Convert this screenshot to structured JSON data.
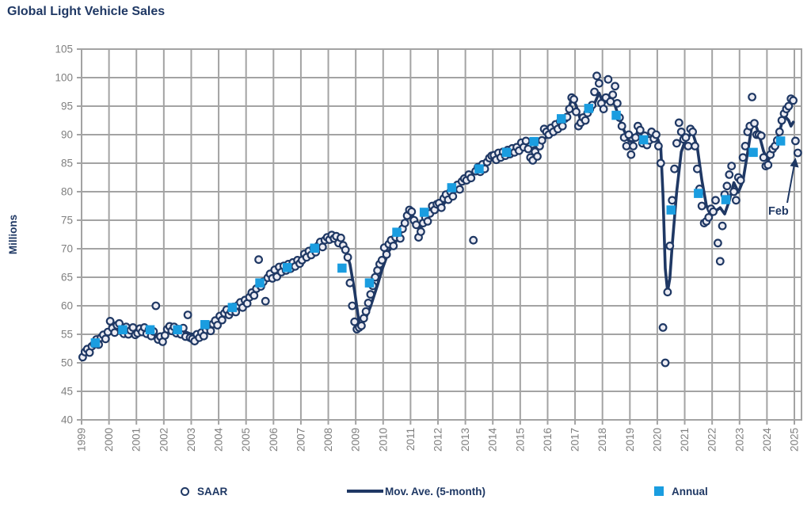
{
  "title": "Global Light Vehicle Sales",
  "colors": {
    "navy": "#1F3864",
    "annual_blue": "#1A9DE0",
    "grid": "#A3A3A3",
    "axis_label": "#7F7F7F",
    "scatter_fill": "#ECECF3",
    "background": "#FFFFFF"
  },
  "legend": {
    "items": [
      {
        "label": "SAAR",
        "marker": "circle"
      },
      {
        "label": "Mov. Ave. (5-month)",
        "marker": "line"
      },
      {
        "label": "Annual",
        "marker": "square"
      }
    ]
  },
  "chart_data": {
    "type": "combo",
    "title": "Global Light Vehicle Sales",
    "xlabel": "",
    "ylabel": "Millions",
    "ylim": [
      40,
      105
    ],
    "ytick_step": 5,
    "grid": "on",
    "legend_position": "bottom",
    "x_years": [
      1999,
      2000,
      2001,
      2002,
      2003,
      2004,
      2005,
      2006,
      2007,
      2008,
      2009,
      2010,
      2011,
      2012,
      2013,
      2014,
      2015,
      2016,
      2017,
      2018,
      2019,
      2020,
      2021,
      2022,
      2023,
      2024,
      2025
    ],
    "annotation": {
      "text": "Feb",
      "series": "SAAR",
      "month": "2025-02",
      "value": 86.8
    },
    "series": [
      {
        "name": "SAAR",
        "type": "scatter",
        "marker": "open-circle",
        "frequency": "monthly",
        "monthly_by_year": {
          "1999": [
            51.0,
            51.9,
            52.4,
            51.8,
            52.9,
            53.3,
            54.1,
            53.2,
            54.4,
            54.9,
            54.2,
            55.4
          ],
          "2000": [
            57.3,
            56.1,
            55.3,
            56.6,
            56.9,
            55.6,
            55.1,
            56.3,
            55.0,
            55.7,
            56.2,
            54.9
          ],
          "2001": [
            55.2,
            56.0,
            55.4,
            56.2,
            55.1,
            55.8,
            54.7,
            55.5,
            60.0,
            54.1,
            54.6,
            53.7
          ],
          "2002": [
            54.8,
            55.9,
            56.4,
            55.6,
            56.3,
            55.2,
            55.9,
            55.0,
            56.1,
            54.6,
            58.4,
            54.4
          ],
          "2003": [
            54.2,
            53.8,
            55.0,
            54.4,
            55.3,
            54.7,
            55.8,
            56.4,
            55.6,
            56.8,
            57.4,
            56.6
          ],
          "2004": [
            58.2,
            57.5,
            58.7,
            59.3,
            58.4,
            59.0,
            59.8,
            58.9,
            60.1,
            60.6,
            59.7,
            61.0
          ],
          "2005": [
            60.4,
            61.5,
            62.3,
            61.8,
            63.0,
            68.1,
            63.4,
            64.2,
            60.8,
            64.9,
            65.6,
            64.8
          ],
          "2006": [
            66.3,
            65.1,
            66.8,
            65.9,
            67.0,
            66.2,
            67.3,
            66.5,
            67.6,
            66.9,
            68.0,
            67.4
          ],
          "2007": [
            68.0,
            69.1,
            68.5,
            69.6,
            68.9,
            70.1,
            69.4,
            70.5,
            71.2,
            70.3,
            71.5,
            72.0
          ],
          "2008": [
            71.6,
            72.4,
            71.8,
            72.2,
            71.0,
            71.9,
            70.6,
            69.8,
            68.5,
            64.0,
            60.0,
            57.2
          ],
          "2009": [
            55.9,
            56.2,
            56.5,
            57.8,
            59.0,
            60.5,
            62.0,
            63.5,
            65.0,
            66.2,
            67.3,
            68.0
          ],
          "2010": [
            70.2,
            69.0,
            70.8,
            71.5,
            70.5,
            72.0,
            72.8,
            71.8,
            73.5,
            74.5,
            75.8,
            76.8
          ],
          "2011": [
            76.5,
            75.0,
            74.2,
            72.0,
            73.0,
            74.5,
            75.5,
            74.8,
            76.2,
            77.5,
            76.8,
            77.8
          ],
          "2012": [
            78.0,
            77.2,
            78.8,
            79.5,
            78.6,
            80.0,
            79.2,
            80.5,
            81.2,
            80.4,
            81.8,
            82.3
          ],
          "2013": [
            82.0,
            83.0,
            82.4,
            71.5,
            83.6,
            84.3,
            83.5,
            84.8,
            84.0,
            85.2,
            85.9,
            86.3
          ],
          "2014": [
            86.4,
            85.6,
            86.8,
            86.0,
            87.0,
            86.3,
            87.3,
            86.6,
            87.6,
            86.9,
            87.8,
            87.2
          ],
          "2015": [
            88.6,
            87.8,
            88.9,
            87.5,
            86.0,
            85.5,
            87.0,
            86.2,
            88.0,
            89.0,
            91.0,
            90.5
          ],
          "2016": [
            90.0,
            91.2,
            90.5,
            91.8,
            91.0,
            92.3,
            91.5,
            92.8,
            93.1,
            94.5,
            96.5,
            96.2
          ],
          "2017": [
            94.0,
            91.5,
            92.1,
            93.0,
            92.5,
            93.8,
            94.5,
            95.2,
            97.5,
            100.3,
            99.0,
            95.5
          ],
          "2018": [
            94.5,
            96.5,
            99.7,
            95.8,
            97.0,
            98.5,
            95.5,
            93.0,
            91.5,
            89.5,
            88.0,
            90.0
          ],
          "2019": [
            86.5,
            88.0,
            89.5,
            91.5,
            90.8,
            88.5,
            89.8,
            88.2,
            89.0,
            90.5,
            89.3,
            90.0
          ],
          "2020": [
            88.0,
            85.0,
            56.2,
            50.0,
            62.4,
            70.5,
            78.5,
            84.0,
            88.5,
            92.1,
            90.5,
            89.2
          ],
          "2021": [
            89.5,
            88.0,
            91.0,
            90.5,
            88.0,
            84.0,
            80.5,
            77.5,
            74.5,
            74.8,
            75.5,
            77.0
          ],
          "2022": [
            76.5,
            78.5,
            71.0,
            67.8,
            74.0,
            79.5,
            81.0,
            83.0,
            84.5,
            80.0,
            78.5,
            82.5
          ],
          "2023": [
            82.0,
            86.0,
            88.0,
            90.5,
            91.5,
            96.6,
            92.0,
            90.0,
            90.0,
            89.8,
            86.0,
            84.5
          ],
          "2024": [
            84.7,
            86.5,
            87.5,
            88.0,
            89.0,
            90.5,
            92.5,
            93.7,
            94.5,
            95.0,
            96.3,
            96.0
          ],
          "2025": [
            88.9,
            86.8
          ]
        }
      },
      {
        "name": "Mov. Ave. (5-month)",
        "type": "line",
        "anchors_month_index_from_jan1999": [
          [
            2,
            51.8
          ],
          [
            5,
            53.1
          ],
          [
            8,
            54.4
          ],
          [
            11,
            55.4
          ],
          [
            14,
            56.1
          ],
          [
            17,
            55.8
          ],
          [
            20,
            55.6
          ],
          [
            23,
            55.4
          ],
          [
            26,
            55.7
          ],
          [
            30,
            55.2
          ],
          [
            34,
            54.6
          ],
          [
            38,
            55.5
          ],
          [
            41,
            56.0
          ],
          [
            44,
            55.6
          ],
          [
            47,
            55.1
          ],
          [
            50,
            54.9
          ],
          [
            53,
            55.4
          ],
          [
            56,
            56.5
          ],
          [
            59,
            57.5
          ],
          [
            63,
            58.6
          ],
          [
            67,
            59.8
          ],
          [
            71,
            60.7
          ],
          [
            75,
            62.1
          ],
          [
            79,
            64.1
          ],
          [
            83,
            65.4
          ],
          [
            87,
            66.1
          ],
          [
            91,
            66.9
          ],
          [
            95,
            67.9
          ],
          [
            99,
            68.7
          ],
          [
            103,
            69.9
          ],
          [
            106,
            71.2
          ],
          [
            109,
            72.1
          ],
          [
            112,
            71.4
          ],
          [
            115,
            69.8
          ],
          [
            117,
            67.3
          ],
          [
            119,
            62.6
          ],
          [
            121,
            56.9
          ],
          [
            122,
            56.6
          ],
          [
            124,
            57.9
          ],
          [
            126,
            59.9
          ],
          [
            129,
            63.6
          ],
          [
            131,
            66.3
          ],
          [
            134,
            69.6
          ],
          [
            137,
            71.2
          ],
          [
            140,
            73.5
          ],
          [
            143,
            76.2
          ],
          [
            145,
            75.5
          ],
          [
            147,
            73.5
          ],
          [
            149,
            74.1
          ],
          [
            152,
            75.9
          ],
          [
            155,
            77.1
          ],
          [
            158,
            77.8
          ],
          [
            161,
            79.6
          ],
          [
            164,
            80.7
          ],
          [
            167,
            81.7
          ],
          [
            170,
            82.9
          ],
          [
            173,
            84.1
          ],
          [
            176,
            85.2
          ],
          [
            179,
            85.8
          ],
          [
            183,
            86.4
          ],
          [
            187,
            87.0
          ],
          [
            191,
            87.9
          ],
          [
            194,
            88.0
          ],
          [
            196,
            87.5
          ],
          [
            199,
            87.9
          ],
          [
            202,
            89.2
          ],
          [
            205,
            90.3
          ],
          [
            209,
            91.6
          ],
          [
            212,
            93.1
          ],
          [
            214,
            96.6
          ],
          [
            216,
            95.1
          ],
          [
            218,
            92.4
          ],
          [
            220,
            92.9
          ],
          [
            223,
            94.5
          ],
          [
            226,
            97.3
          ],
          [
            228,
            95.4
          ],
          [
            231,
            96.8
          ],
          [
            233,
            95.1
          ],
          [
            235,
            92.7
          ],
          [
            237,
            90.7
          ],
          [
            239,
            88.9
          ],
          [
            241,
            88.7
          ],
          [
            243,
            90.7
          ],
          [
            245,
            89.7
          ],
          [
            247,
            88.8
          ],
          [
            249,
            89.2
          ],
          [
            251,
            90.0
          ],
          [
            253,
            87.8
          ],
          [
            254,
            79.5
          ],
          [
            255,
            66.5
          ],
          [
            256,
            62.5
          ],
          [
            257,
            64.8
          ],
          [
            258,
            70.5
          ],
          [
            260,
            80.0
          ],
          [
            262,
            87.0
          ],
          [
            264,
            89.3
          ],
          [
            267,
            90.3
          ],
          [
            269,
            87.8
          ],
          [
            271,
            82.0
          ],
          [
            273,
            77.6
          ],
          [
            275,
            75.7
          ],
          [
            277,
            76.6
          ],
          [
            279,
            77.2
          ],
          [
            281,
            76.1
          ],
          [
            283,
            78.4
          ],
          [
            285,
            81.6
          ],
          [
            287,
            79.9
          ],
          [
            289,
            81.9
          ],
          [
            291,
            86.8
          ],
          [
            293,
            91.8
          ],
          [
            294,
            92.3
          ],
          [
            296,
            90.1
          ],
          [
            298,
            87.1
          ],
          [
            300,
            85.4
          ],
          [
            303,
            88.2
          ],
          [
            305,
            90.6
          ],
          [
            307,
            93.4
          ],
          [
            309,
            92.5
          ],
          [
            310,
            91.5
          ],
          [
            311,
            92.2
          ]
        ]
      },
      {
        "name": "Annual",
        "type": "scatter",
        "marker": "square",
        "by_year": {
          "1999": 53.5,
          "2000": 55.8,
          "2001": 55.8,
          "2002": 55.8,
          "2003": 56.7,
          "2004": 59.7,
          "2005": 64.0,
          "2006": 66.7,
          "2007": 70.1,
          "2008": 66.6,
          "2009": 64.0,
          "2010": 72.9,
          "2011": 76.4,
          "2012": 80.7,
          "2013": 84.0,
          "2014": 86.9,
          "2015": 88.8,
          "2016": 92.8,
          "2017": 94.6,
          "2018": 93.4,
          "2019": 89.1,
          "2020": 76.8,
          "2021": 79.7,
          "2022": 78.6,
          "2023": 86.9,
          "2024": 88.9
        }
      }
    ]
  }
}
